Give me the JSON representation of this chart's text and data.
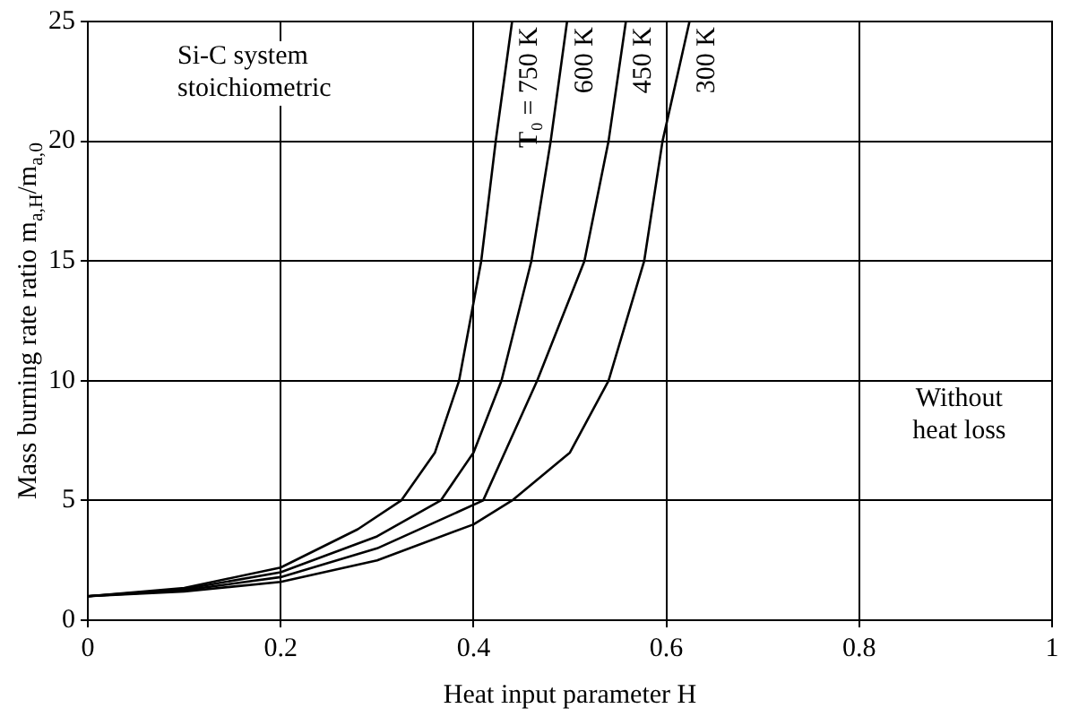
{
  "chart_data": {
    "type": "line",
    "xlabel": "Heat input parameter H",
    "ylabel": "Mass burning rate ratio m$_{a,H}$/m$_{a,0}$",
    "annotations": [
      "Si-C system stoichiometric",
      "Without heat loss"
    ],
    "series": [
      {
        "name": "T₀ = 750 K",
        "color": "#000000",
        "x": [
          0,
          0.1,
          0.2,
          0.28,
          0.325,
          0.36,
          0.385,
          0.408,
          0.423,
          0.44
        ],
        "values": [
          1,
          1.35,
          2.2,
          3.8,
          5,
          7,
          10,
          15,
          20,
          25
        ]
      },
      {
        "name": "600 K",
        "color": "#000000",
        "x": [
          0,
          0.1,
          0.2,
          0.3,
          0.366,
          0.4,
          0.429,
          0.46,
          0.48,
          0.497
        ],
        "values": [
          1,
          1.3,
          2.0,
          3.5,
          5,
          7,
          10,
          15,
          20,
          25
        ]
      },
      {
        "name": "450 K",
        "color": "#000000",
        "x": [
          0,
          0.1,
          0.2,
          0.3,
          0.41,
          0.466,
          0.515,
          0.54,
          0.558
        ],
        "values": [
          1,
          1.25,
          1.8,
          3.0,
          5,
          10,
          15,
          20,
          25
        ]
      },
      {
        "name": "300 K",
        "color": "#000000",
        "x": [
          0,
          0.1,
          0.2,
          0.3,
          0.4,
          0.44,
          0.5,
          0.54,
          0.577,
          0.596,
          0.624
        ],
        "values": [
          1,
          1.2,
          1.6,
          2.5,
          4,
          5,
          7,
          10,
          15,
          20,
          25
        ]
      }
    ],
    "xlim": [
      0,
      1
    ],
    "xticks": [
      0,
      0.2,
      0.4,
      0.6,
      0.8,
      1
    ],
    "ylim": [
      0,
      25
    ],
    "yticks": [
      0,
      5,
      10,
      15,
      20,
      25
    ],
    "grid": true,
    "legend": false,
    "marker": "none",
    "line_style": "solid"
  }
}
